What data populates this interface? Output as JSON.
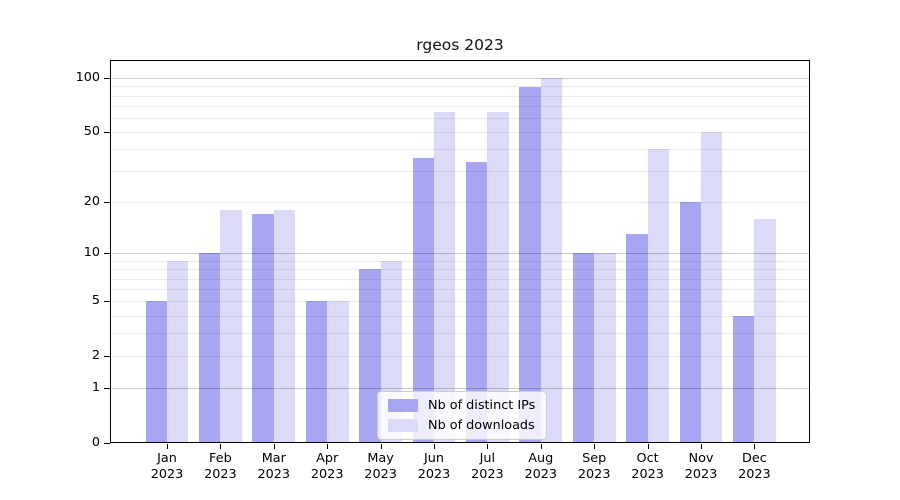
{
  "chart_data": {
    "type": "bar",
    "title": "rgeos 2023",
    "year_label": "2023",
    "categories": [
      "Jan",
      "Feb",
      "Mar",
      "Apr",
      "May",
      "Jun",
      "Jul",
      "Aug",
      "Sep",
      "Oct",
      "Nov",
      "Dec"
    ],
    "series": [
      {
        "name": "Nb of distinct IPs",
        "color": "#a6a6f2",
        "values": [
          5,
          10,
          17,
          5,
          8,
          36,
          34,
          89,
          10,
          13,
          20,
          4
        ]
      },
      {
        "name": "Nb of downloads",
        "color": "#dbdbf8",
        "values": [
          9,
          18,
          18,
          5,
          9,
          65,
          65,
          100,
          10,
          40,
          50,
          16
        ]
      }
    ],
    "xlabel": "",
    "ylabel": "",
    "yscale": "log1p",
    "ylim": [
      0,
      125
    ],
    "yticks": [
      0,
      1,
      2,
      5,
      10,
      20,
      50,
      100
    ],
    "major_gridlines": [
      1,
      10,
      100
    ],
    "minor_gridlines": [
      2,
      3,
      4,
      5,
      6,
      7,
      8,
      9,
      20,
      30,
      40,
      50,
      60,
      70,
      80,
      90
    ],
    "grid": true,
    "legend_position": "lower center"
  }
}
